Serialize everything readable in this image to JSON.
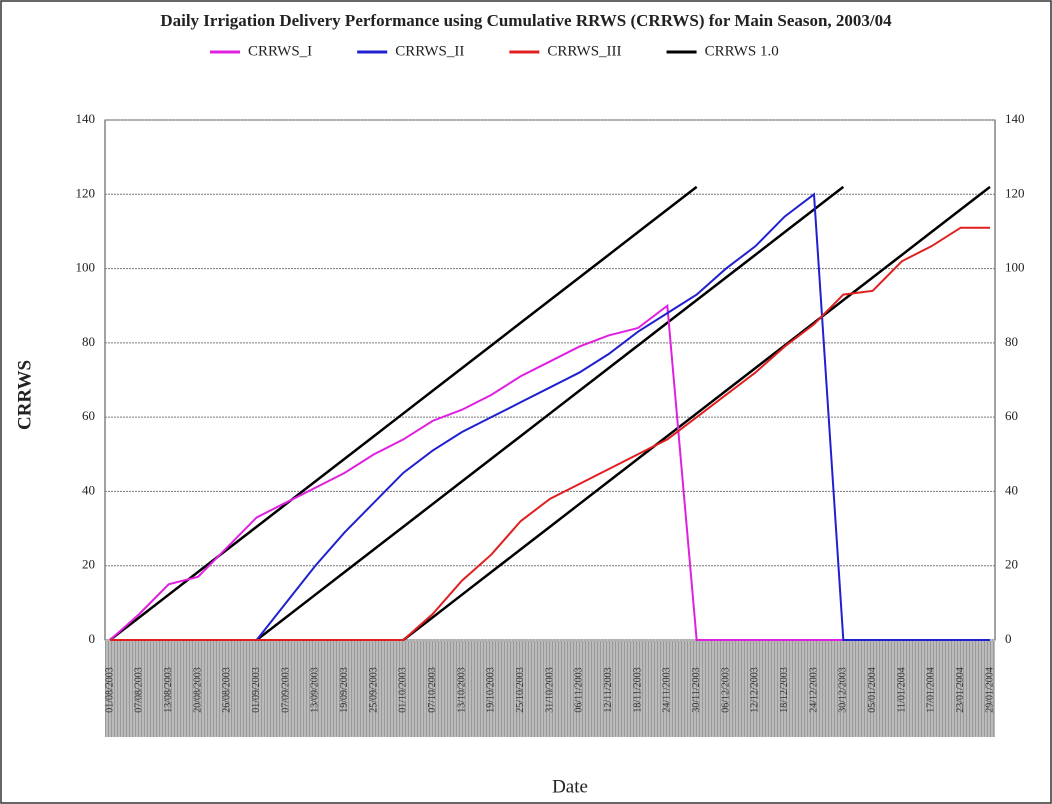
{
  "chart_data": {
    "type": "line",
    "title": "Daily Irrigation Delivery Performance using Cumulative RRWS (CRRWS) for Main Season, 2003/04",
    "x_label": "Date",
    "y_label": "CRRWS",
    "categories": [
      "01/08/2003",
      "07/08/2003",
      "13/08/2003",
      "20/08/2003",
      "26/08/2003",
      "01/09/2003",
      "07/09/2003",
      "13/09/2003",
      "19/09/2003",
      "25/09/2003",
      "01/10/2003",
      "07/10/2003",
      "13/10/2003",
      "19/10/2003",
      "25/10/2003",
      "31/10/2003",
      "06/11/2003",
      "12/11/2003",
      "18/11/2003",
      "24/11/2003",
      "30/11/2003",
      "06/12/2003",
      "12/12/2003",
      "18/12/2003",
      "24/12/2003",
      "30/12/2003",
      "05/01/2004",
      "11/01/2004",
      "17/01/2004",
      "23/01/2004",
      "29/01/2004"
    ],
    "series": [
      {
        "name": "CRRWS_I",
        "color": "#e020e0",
        "values": [
          0,
          7,
          15,
          17,
          25,
          33,
          37,
          41,
          45,
          50,
          54,
          59,
          62,
          66,
          71,
          75,
          79,
          82,
          84,
          90,
          0,
          0,
          0,
          0,
          0,
          0,
          0,
          0,
          0,
          0,
          0
        ]
      },
      {
        "name": "CRRWS_II",
        "color": "#2020d0",
        "values": [
          0,
          0,
          0,
          0,
          0,
          0,
          10,
          20,
          29,
          37,
          45,
          51,
          56,
          60,
          64,
          68,
          72,
          77,
          83,
          88,
          93,
          100,
          106,
          114,
          120,
          0,
          0,
          0,
          0,
          0,
          0
        ]
      },
      {
        "name": "CRRWS_III",
        "color": "#e02020",
        "values": [
          0,
          0,
          0,
          0,
          0,
          0,
          0,
          0,
          0,
          0,
          0,
          7,
          16,
          23,
          32,
          38,
          42,
          46,
          50,
          54,
          60,
          66,
          72,
          79,
          85,
          93,
          94,
          102,
          106,
          111,
          111
        ]
      }
    ],
    "reference": {
      "name": "CRRWS 1.0",
      "color": "#000000",
      "lines": [
        [
          0,
          6.1,
          12.2,
          18.3,
          24.4,
          30.5,
          36.6,
          42.7,
          48.8,
          54.9,
          61,
          67.1,
          73.2,
          79.3,
          85.4,
          91.5,
          97.6,
          103.7,
          109.8,
          115.9,
          122,
          null,
          null,
          null,
          null,
          null,
          null,
          null,
          null,
          null,
          null
        ],
        [
          null,
          null,
          null,
          null,
          null,
          0,
          6.1,
          12.2,
          18.3,
          24.4,
          30.5,
          36.6,
          42.7,
          48.8,
          54.9,
          61,
          67.1,
          73.2,
          79.3,
          85.4,
          91.5,
          97.6,
          103.7,
          109.8,
          115.9,
          122,
          null,
          null,
          null,
          null,
          null
        ],
        [
          null,
          null,
          null,
          null,
          null,
          null,
          null,
          null,
          null,
          null,
          0,
          6.1,
          12.2,
          18.3,
          24.4,
          30.5,
          36.6,
          42.7,
          48.8,
          54.9,
          61,
          67.1,
          73.2,
          79.3,
          85.4,
          91.5,
          97.6,
          103.7,
          109.8,
          115.9,
          122
        ]
      ]
    },
    "ylim": [
      0,
      140
    ],
    "yticks": [
      0,
      20,
      40,
      60,
      80,
      100,
      120,
      140
    ],
    "grid": true,
    "legend": "top"
  }
}
